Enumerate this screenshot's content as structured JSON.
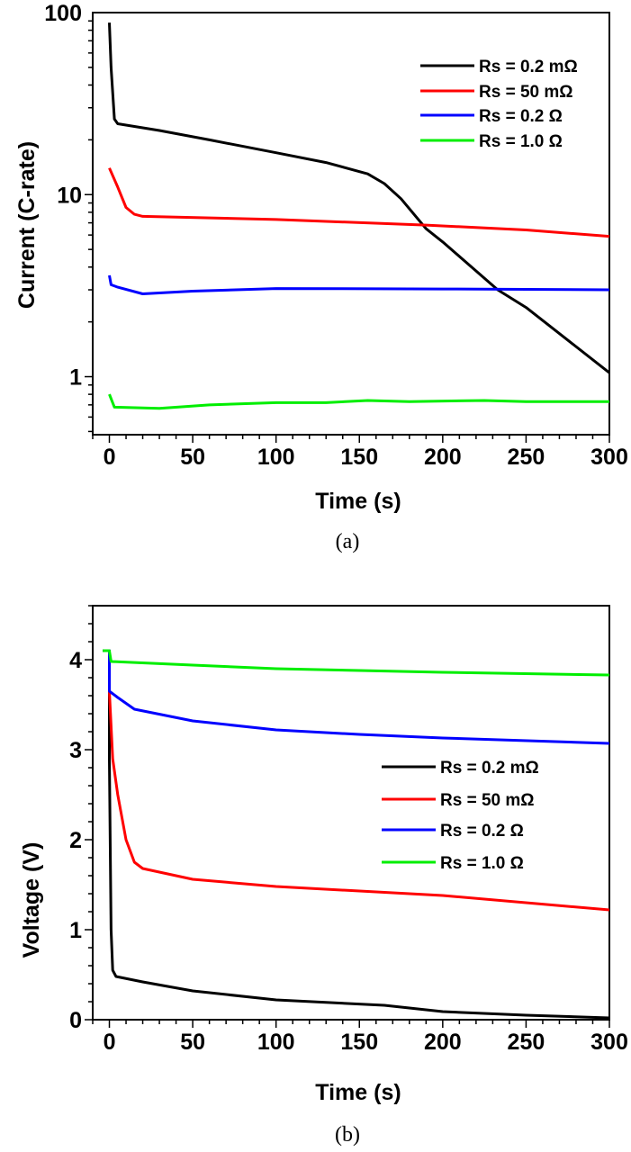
{
  "chart_data": [
    {
      "panel": "(a)",
      "type": "line",
      "xlabel": "Time (s)",
      "ylabel": "Current (C-rate)",
      "yscale": "log",
      "xlim": [
        -10,
        300
      ],
      "ylim": [
        0.48,
        100
      ],
      "xticks": [
        0,
        50,
        100,
        150,
        200,
        250,
        300
      ],
      "yticks": [
        1,
        10,
        100
      ],
      "ytick_labels": [
        "1",
        "10",
        "100"
      ],
      "legend_position": "top-right",
      "series": [
        {
          "name": "Rs = 0.2 mΩ",
          "color": "#000000",
          "x": [
            0,
            1,
            3,
            5,
            30,
            60,
            100,
            130,
            155,
            165,
            175,
            190,
            200,
            233,
            250,
            300
          ],
          "y": [
            88,
            50,
            26,
            24.5,
            22.5,
            20,
            17,
            15,
            13,
            11.5,
            9.5,
            6.5,
            5.5,
            3,
            2.4,
            1.05
          ]
        },
        {
          "name": "Rs = 50 mΩ",
          "color": "#ff0000",
          "x": [
            0,
            5,
            10,
            15,
            20,
            100,
            190,
            250,
            300
          ],
          "y": [
            14,
            11,
            8.5,
            7.8,
            7.6,
            7.3,
            6.8,
            6.4,
            5.9
          ]
        },
        {
          "name": "Rs = 0.2 Ω",
          "color": "#0000ff",
          "x": [
            0,
            1,
            5,
            20,
            50,
            100,
            200,
            300
          ],
          "y": [
            3.6,
            3.2,
            3.1,
            2.85,
            2.95,
            3.05,
            3.03,
            3.0
          ]
        },
        {
          "name": "Rs = 1.0 Ω",
          "color": "#00ee00",
          "x": [
            0,
            3,
            30,
            60,
            100,
            130,
            155,
            180,
            225,
            250,
            300
          ],
          "y": [
            0.8,
            0.68,
            0.67,
            0.7,
            0.72,
            0.72,
            0.74,
            0.73,
            0.74,
            0.73,
            0.73
          ]
        }
      ]
    },
    {
      "panel": "(b)",
      "type": "line",
      "xlabel": "Time (s)",
      "ylabel": "Voltage (V)",
      "yscale": "linear",
      "xlim": [
        -10,
        300
      ],
      "ylim": [
        0,
        4.6
      ],
      "xticks": [
        0,
        50,
        100,
        150,
        200,
        250,
        300
      ],
      "yticks": [
        0,
        1,
        2,
        3,
        4
      ],
      "ytick_labels": [
        "0",
        "1",
        "2",
        "3",
        "4"
      ],
      "legend_position": "center-right",
      "series": [
        {
          "name": "Rs = 0.2 mΩ",
          "color": "#000000",
          "x": [
            -4,
            0,
            0,
            1,
            2,
            4,
            20,
            50,
            100,
            165,
            200,
            250,
            300
          ],
          "y": [
            4.1,
            4.1,
            2.9,
            1.0,
            0.55,
            0.48,
            0.42,
            0.32,
            0.22,
            0.16,
            0.09,
            0.05,
            0.02
          ]
        },
        {
          "name": "Rs = 50 mΩ",
          "color": "#ff0000",
          "x": [
            0,
            2,
            5,
            10,
            15,
            20,
            50,
            100,
            200,
            300
          ],
          "y": [
            3.65,
            2.9,
            2.5,
            2.0,
            1.75,
            1.68,
            1.56,
            1.48,
            1.38,
            1.22
          ]
        },
        {
          "name": "Rs = 0.2 Ω",
          "color": "#0000ff",
          "x": [
            -4,
            0,
            0,
            5,
            15,
            50,
            100,
            150,
            200,
            300
          ],
          "y": [
            4.1,
            4.1,
            3.65,
            3.58,
            3.45,
            3.32,
            3.22,
            3.17,
            3.13,
            3.07
          ]
        },
        {
          "name": "Rs = 1.0 Ω",
          "color": "#00ee00",
          "x": [
            -4,
            0,
            1,
            50,
            100,
            150,
            200,
            300
          ],
          "y": [
            4.1,
            4.1,
            3.98,
            3.94,
            3.9,
            3.88,
            3.86,
            3.83
          ]
        }
      ]
    }
  ]
}
